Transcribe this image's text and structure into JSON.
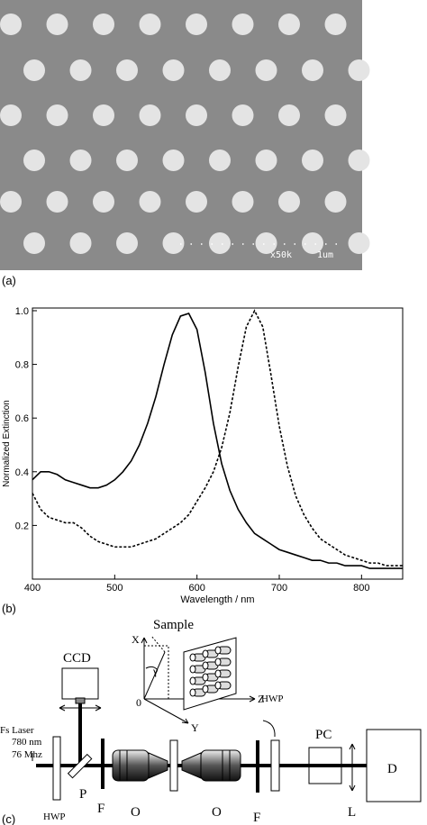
{
  "panel_a": {
    "label": "(a)",
    "magnification": "x50k",
    "scale": "1um"
  },
  "panel_b": {
    "label": "(b)"
  },
  "chart_data": {
    "type": "line",
    "xlabel": "Wavelength / nm",
    "ylabel": "Normalized Extinction",
    "x": [
      400,
      410,
      420,
      430,
      440,
      450,
      460,
      470,
      480,
      490,
      500,
      510,
      520,
      530,
      540,
      550,
      560,
      570,
      580,
      590,
      600,
      610,
      620,
      630,
      640,
      650,
      660,
      670,
      680,
      690,
      700,
      710,
      720,
      730,
      740,
      750,
      760,
      770,
      780,
      790,
      800,
      810,
      820,
      830,
      840,
      850
    ],
    "series": [
      {
        "color": "#000000",
        "style": "solid",
        "values": [
          0.37,
          0.4,
          0.4,
          0.39,
          0.37,
          0.36,
          0.35,
          0.34,
          0.34,
          0.35,
          0.37,
          0.4,
          0.44,
          0.5,
          0.58,
          0.68,
          0.8,
          0.91,
          0.98,
          0.99,
          0.93,
          0.77,
          0.58,
          0.43,
          0.33,
          0.26,
          0.21,
          0.17,
          0.15,
          0.13,
          0.11,
          0.1,
          0.09,
          0.08,
          0.07,
          0.07,
          0.06,
          0.06,
          0.05,
          0.05,
          0.05,
          0.04,
          0.04,
          0.04,
          0.04,
          0.04
        ]
      },
      {
        "color": "#000000",
        "style": "dashed",
        "values": [
          0.32,
          0.26,
          0.23,
          0.22,
          0.21,
          0.21,
          0.19,
          0.16,
          0.14,
          0.13,
          0.12,
          0.12,
          0.12,
          0.13,
          0.14,
          0.15,
          0.17,
          0.19,
          0.21,
          0.24,
          0.29,
          0.34,
          0.4,
          0.49,
          0.62,
          0.79,
          0.94,
          1.0,
          0.94,
          0.76,
          0.57,
          0.42,
          0.31,
          0.24,
          0.19,
          0.15,
          0.13,
          0.11,
          0.09,
          0.08,
          0.07,
          0.06,
          0.06,
          0.05,
          0.05,
          0.05
        ]
      }
    ],
    "xlim": [
      400,
      850
    ],
    "xticks": [
      400,
      500,
      600,
      700,
      800
    ],
    "ylim": [
      0,
      1.01
    ],
    "yticks": [
      0.2,
      0.4,
      0.6,
      0.8,
      {
        "value": 1,
        "label": "1.0"
      }
    ]
  },
  "panel_c": {
    "label": "(c)",
    "sample": "Sample",
    "ccd": "CCD",
    "axis_x": "X",
    "angle": "γ",
    "origin": "0",
    "axis_z": "Z",
    "axis_y": "Y",
    "laser": [
      "Fs Laser",
      "780 nm",
      "76 Mhz"
    ],
    "hwp_left": "HWP",
    "polarizer": "P",
    "filter_left": "F",
    "objective_left": "O",
    "objective_right": "O",
    "filter_right": "F",
    "hwp_right": "HWP",
    "pc": "PC",
    "lens": "L",
    "detector": "D"
  }
}
